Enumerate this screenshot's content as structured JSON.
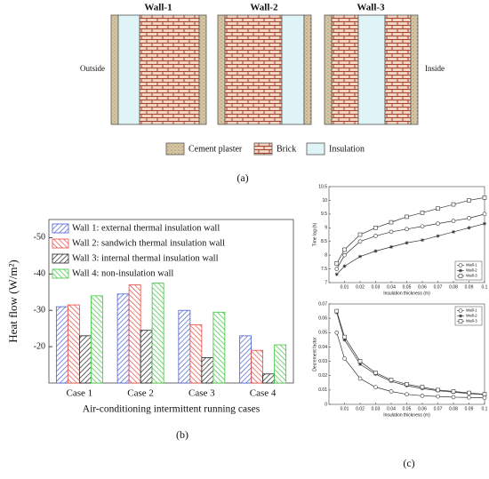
{
  "panels": [
    "(a)",
    "(b)",
    "(c)"
  ],
  "diagram": {
    "walls": [
      "Wall-1",
      "Wall-2",
      "Wall-3"
    ],
    "outside": "Outside",
    "inside": "Inside",
    "legend": [
      "Cement plaster",
      "Brick",
      "Insulation"
    ]
  },
  "chart_data": [
    {
      "type": "bar",
      "ylabel": "Heat flow (W/m²)",
      "xlabel": "Air-conditioning intermittent running cases",
      "categories": [
        "Case 1",
        "Case 2",
        "Case 3",
        "Case 4"
      ],
      "series": [
        {
          "name": "Wall 1: external thermal insulation wall",
          "color": "#4a5fd0",
          "values": [
            -31,
            -34.5,
            -30,
            -23
          ]
        },
        {
          "name": "Wall 2: sandwich thermal insulation wall",
          "color": "#e8483e",
          "values": [
            -31.5,
            -37,
            -26,
            -19
          ]
        },
        {
          "name": "Wall 3: internal thermal insulation wall",
          "color": "#222222",
          "values": [
            -23,
            -24.5,
            -17,
            -12.5
          ]
        },
        {
          "name": "Wall 4: non-insulation wall",
          "color": "#3fc43f",
          "values": [
            -34,
            -37.5,
            -29.5,
            -20.5
          ]
        }
      ],
      "ylim": [
        -10,
        -55
      ],
      "yticks": [
        -50,
        -40,
        -30,
        -20
      ],
      "legend": "upper left"
    },
    {
      "type": "line",
      "xlabel": "Insulation thickness (m)",
      "ylabel": "Time lag (h)",
      "x": [
        0.005,
        0.01,
        0.02,
        0.03,
        0.04,
        0.05,
        0.06,
        0.07,
        0.08,
        0.09,
        0.1
      ],
      "series": [
        {
          "name": "Wall-1",
          "color": "#333333",
          "marker": "circle",
          "values": [
            7.5,
            8.0,
            8.5,
            8.7,
            8.85,
            8.95,
            9.05,
            9.15,
            9.25,
            9.35,
            9.5
          ]
        },
        {
          "name": "Wall-2",
          "color": "#333333",
          "marker": "star",
          "values": [
            7.3,
            7.6,
            7.95,
            8.15,
            8.3,
            8.45,
            8.55,
            8.7,
            8.85,
            9.0,
            9.15
          ]
        },
        {
          "name": "Wall-3",
          "color": "#333333",
          "marker": "square",
          "values": [
            7.7,
            8.2,
            8.75,
            9.0,
            9.2,
            9.4,
            9.55,
            9.7,
            9.85,
            10.0,
            10.1
          ]
        }
      ],
      "xlim": [
        0,
        0.1
      ],
      "xticks": [
        0.01,
        0.02,
        0.03,
        0.04,
        0.05,
        0.06,
        0.07,
        0.08,
        0.09,
        0.1
      ],
      "ylim": [
        7,
        10.5
      ],
      "yticks": [
        7,
        7.5,
        8,
        8.5,
        9,
        9.5,
        10,
        10.5
      ],
      "legend": "lower right"
    },
    {
      "type": "line",
      "xlabel": "Insulation thickness (m)",
      "ylabel": "Decrement factor",
      "x": [
        0.005,
        0.01,
        0.02,
        0.03,
        0.04,
        0.05,
        0.06,
        0.07,
        0.08,
        0.09,
        0.1
      ],
      "series": [
        {
          "name": "Wall-1",
          "color": "#333333",
          "marker": "circle",
          "values": [
            0.05,
            0.032,
            0.018,
            0.012,
            0.009,
            0.007,
            0.006,
            0.0055,
            0.005,
            0.0048,
            0.0045
          ]
        },
        {
          "name": "Wall-2",
          "color": "#333333",
          "marker": "star",
          "values": [
            0.064,
            0.045,
            0.028,
            0.021,
            0.016,
            0.013,
            0.011,
            0.0095,
            0.0085,
            0.0075,
            0.0068
          ]
        },
        {
          "name": "Wall-3",
          "color": "#333333",
          "marker": "square",
          "values": [
            0.065,
            0.047,
            0.03,
            0.022,
            0.017,
            0.014,
            0.012,
            0.01,
            0.009,
            0.008,
            0.007
          ]
        }
      ],
      "xlim": [
        0,
        0.1
      ],
      "xticks": [
        0.01,
        0.02,
        0.03,
        0.04,
        0.05,
        0.06,
        0.07,
        0.08,
        0.09,
        0.1
      ],
      "ylim": [
        0,
        0.07
      ],
      "yticks": [
        0,
        0.01,
        0.02,
        0.03,
        0.04,
        0.05,
        0.06,
        0.07
      ],
      "legend": "upper right"
    }
  ]
}
